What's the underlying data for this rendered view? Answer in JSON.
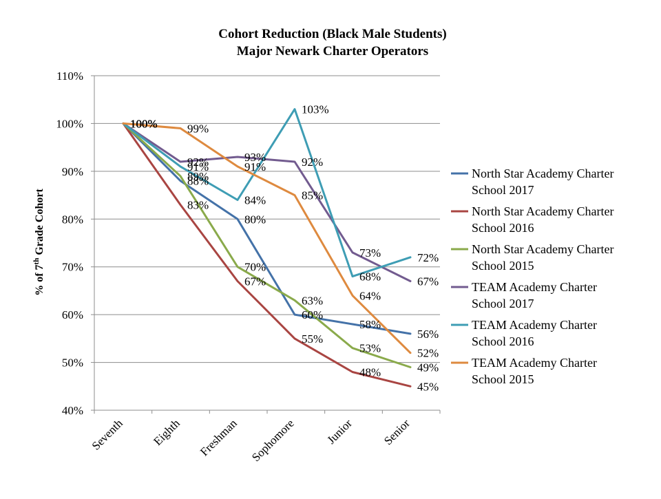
{
  "chart_data": {
    "type": "line",
    "title": [
      "Cohort Reduction (Black Male Students)",
      "Major Newark Charter Operators"
    ],
    "ylabel_prefix": "% of 7",
    "ylabel_sup": "th",
    "ylabel_suffix": " Grade Cohort",
    "xlabel": "",
    "categories": [
      "Seventh",
      "Eighth",
      "Freshman",
      "Sophomore",
      "Junior",
      "Senior"
    ],
    "ylim": [
      40,
      110
    ],
    "yticks": [
      40,
      50,
      60,
      70,
      80,
      90,
      100,
      110
    ],
    "ytick_labels": [
      "40%",
      "50%",
      "60%",
      "70%",
      "80%",
      "90%",
      "100%",
      "110%"
    ],
    "grid": true,
    "legend_position": "right",
    "series": [
      {
        "name": "North Star Academy Charter School 2017",
        "legend_lines": [
          "North Star Academy Charter",
          "School 2017"
        ],
        "color": "#4472A8",
        "values": [
          100,
          88,
          80,
          60,
          58,
          56
        ],
        "labels": [
          "100%",
          "88%",
          "80%",
          "60%",
          "58%",
          "56%"
        ]
      },
      {
        "name": "North Star Academy Charter School 2016",
        "legend_lines": [
          "North Star Academy Charter",
          "School 2016"
        ],
        "color": "#A94542",
        "values": [
          100,
          83,
          67,
          55,
          48,
          45
        ],
        "labels": [
          "100%",
          "83%",
          "67%",
          "55%",
          "48%",
          "45%"
        ]
      },
      {
        "name": "North Star Academy Charter School 2015",
        "legend_lines": [
          "North Star Academy Charter",
          "School 2015"
        ],
        "color": "#8AAA4B",
        "values": [
          100,
          89,
          70,
          63,
          53,
          49
        ],
        "labels": [
          "100%",
          "89%",
          "70%",
          "63%",
          "53%",
          "49%"
        ]
      },
      {
        "name": "TEAM Academy Charter School 2017",
        "legend_lines": [
          "TEAM Academy Charter",
          "School 2017"
        ],
        "color": "#725B8F",
        "values": [
          100,
          92,
          93,
          92,
          73,
          67
        ],
        "labels": [
          "100%",
          "92%",
          "93%",
          "92%",
          "73%",
          "67%"
        ]
      },
      {
        "name": "TEAM Academy Charter School 2016",
        "legend_lines": [
          "TEAM Academy Charter",
          "School 2016"
        ],
        "color": "#3E9DB4",
        "values": [
          100,
          91,
          84,
          103,
          68,
          72
        ],
        "labels": [
          "100%",
          "91%",
          "84%",
          "103%",
          "68%",
          "72%"
        ]
      },
      {
        "name": "TEAM Academy Charter School 2015",
        "legend_lines": [
          "TEAM Academy Charter",
          "School 2015"
        ],
        "color": "#DE8A3F",
        "values": [
          100,
          99,
          91,
          85,
          64,
          52
        ],
        "labels": [
          "100%",
          "99%",
          "91%",
          "85%",
          "64%",
          "52%"
        ]
      }
    ]
  }
}
